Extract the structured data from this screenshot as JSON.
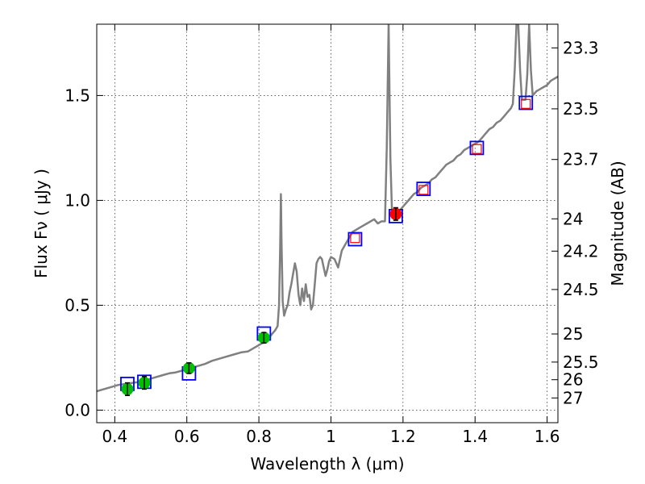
{
  "chart_data": {
    "type": "line",
    "xlabel": "Wavelength  λ (μm)",
    "ylabel": "Flux  Fν  ( μJy )",
    "ylabel_right": "Magnitude (AB)",
    "xlim": [
      0.35,
      1.63
    ],
    "ylim": [
      -0.06,
      1.84
    ],
    "grid": true,
    "x_ticks": [
      {
        "value": 0.4,
        "label": "0.4"
      },
      {
        "value": 0.6,
        "label": "0.6"
      },
      {
        "value": 0.8,
        "label": "0.8"
      },
      {
        "value": 1.0,
        "label": "1"
      },
      {
        "value": 1.2,
        "label": "1.2"
      },
      {
        "value": 1.4,
        "label": "1.4"
      },
      {
        "value": 1.6,
        "label": "1.6"
      }
    ],
    "y_ticks": [
      {
        "value": 0.0,
        "label": "0.0"
      },
      {
        "value": 0.5,
        "label": "0.5"
      },
      {
        "value": 1.0,
        "label": "1.0"
      },
      {
        "value": 1.5,
        "label": "1.5"
      }
    ],
    "right_ticks": [
      {
        "flux": 1.727,
        "label": "23.3"
      },
      {
        "flux": 1.4365,
        "label": "23.5"
      },
      {
        "flux": 1.195,
        "label": "23.7"
      },
      {
        "flux": 0.912,
        "label": "24"
      },
      {
        "flux": 0.758,
        "label": "24.2"
      },
      {
        "flux": 0.575,
        "label": "24.5"
      },
      {
        "flux": 0.363,
        "label": "25"
      },
      {
        "flux": 0.229,
        "label": "25.5"
      },
      {
        "flux": 0.145,
        "label": "26"
      },
      {
        "flux": 0.058,
        "label": "27"
      }
    ],
    "spectrum": {
      "color": "#808080",
      "points": [
        [
          0.35,
          0.09
        ],
        [
          0.37,
          0.1
        ],
        [
          0.39,
          0.11
        ],
        [
          0.41,
          0.12
        ],
        [
          0.43,
          0.125
        ],
        [
          0.45,
          0.13
        ],
        [
          0.47,
          0.135
        ],
        [
          0.49,
          0.145
        ],
        [
          0.51,
          0.155
        ],
        [
          0.53,
          0.165
        ],
        [
          0.55,
          0.175
        ],
        [
          0.57,
          0.18
        ],
        [
          0.59,
          0.19
        ],
        [
          0.61,
          0.2
        ],
        [
          0.63,
          0.21
        ],
        [
          0.65,
          0.22
        ],
        [
          0.67,
          0.235
        ],
        [
          0.69,
          0.245
        ],
        [
          0.71,
          0.255
        ],
        [
          0.73,
          0.265
        ],
        [
          0.75,
          0.275
        ],
        [
          0.77,
          0.28
        ],
        [
          0.79,
          0.3
        ],
        [
          0.81,
          0.32
        ],
        [
          0.825,
          0.34
        ],
        [
          0.835,
          0.36
        ],
        [
          0.845,
          0.38
        ],
        [
          0.852,
          0.4
        ],
        [
          0.856,
          0.5
        ],
        [
          0.859,
          0.78
        ],
        [
          0.861,
          1.03
        ],
        [
          0.863,
          0.8
        ],
        [
          0.866,
          0.52
        ],
        [
          0.87,
          0.45
        ],
        [
          0.875,
          0.48
        ],
        [
          0.88,
          0.5
        ],
        [
          0.885,
          0.56
        ],
        [
          0.89,
          0.6
        ],
        [
          0.895,
          0.65
        ],
        [
          0.9,
          0.7
        ],
        [
          0.905,
          0.66
        ],
        [
          0.91,
          0.55
        ],
        [
          0.915,
          0.5
        ],
        [
          0.92,
          0.58
        ],
        [
          0.925,
          0.52
        ],
        [
          0.93,
          0.6
        ],
        [
          0.935,
          0.54
        ],
        [
          0.94,
          0.55
        ],
        [
          0.945,
          0.48
        ],
        [
          0.95,
          0.5
        ],
        [
          0.955,
          0.6
        ],
        [
          0.96,
          0.7
        ],
        [
          0.965,
          0.72
        ],
        [
          0.97,
          0.73
        ],
        [
          0.975,
          0.72
        ],
        [
          0.98,
          0.68
        ],
        [
          0.985,
          0.64
        ],
        [
          0.99,
          0.67
        ],
        [
          0.995,
          0.71
        ],
        [
          1.0,
          0.73
        ],
        [
          1.01,
          0.72
        ],
        [
          1.02,
          0.68
        ],
        [
          1.03,
          0.76
        ],
        [
          1.04,
          0.79
        ],
        [
          1.05,
          0.82
        ],
        [
          1.06,
          0.85
        ],
        [
          1.07,
          0.86
        ],
        [
          1.08,
          0.87
        ],
        [
          1.09,
          0.88
        ],
        [
          1.1,
          0.89
        ],
        [
          1.11,
          0.9
        ],
        [
          1.12,
          0.91
        ],
        [
          1.13,
          0.89
        ],
        [
          1.14,
          0.9
        ],
        [
          1.15,
          0.9
        ],
        [
          1.155,
          1.25
        ],
        [
          1.16,
          1.84
        ],
        [
          1.165,
          1.2
        ],
        [
          1.17,
          0.92
        ],
        [
          1.18,
          0.93
        ],
        [
          1.19,
          0.95
        ],
        [
          1.2,
          0.97
        ],
        [
          1.21,
          0.99
        ],
        [
          1.22,
          1.01
        ],
        [
          1.23,
          1.03
        ],
        [
          1.24,
          1.04
        ],
        [
          1.25,
          1.06
        ],
        [
          1.26,
          1.07
        ],
        [
          1.27,
          1.08
        ],
        [
          1.28,
          1.1
        ],
        [
          1.29,
          1.11
        ],
        [
          1.3,
          1.13
        ],
        [
          1.31,
          1.15
        ],
        [
          1.32,
          1.17
        ],
        [
          1.33,
          1.18
        ],
        [
          1.34,
          1.19
        ],
        [
          1.35,
          1.21
        ],
        [
          1.36,
          1.22
        ],
        [
          1.37,
          1.24
        ],
        [
          1.38,
          1.25
        ],
        [
          1.39,
          1.26
        ],
        [
          1.4,
          1.27
        ],
        [
          1.41,
          1.28
        ],
        [
          1.42,
          1.3
        ],
        [
          1.43,
          1.32
        ],
        [
          1.44,
          1.34
        ],
        [
          1.45,
          1.35
        ],
        [
          1.46,
          1.37
        ],
        [
          1.47,
          1.38
        ],
        [
          1.48,
          1.4
        ],
        [
          1.49,
          1.42
        ],
        [
          1.5,
          1.44
        ],
        [
          1.505,
          1.46
        ],
        [
          1.51,
          1.62
        ],
        [
          1.515,
          1.84
        ],
        [
          1.52,
          1.84
        ],
        [
          1.525,
          1.62
        ],
        [
          1.53,
          1.48
        ],
        [
          1.54,
          1.48
        ],
        [
          1.545,
          1.6
        ],
        [
          1.55,
          1.84
        ],
        [
          1.555,
          1.62
        ],
        [
          1.56,
          1.5
        ],
        [
          1.57,
          1.52
        ],
        [
          1.58,
          1.53
        ],
        [
          1.59,
          1.54
        ],
        [
          1.6,
          1.55
        ],
        [
          1.61,
          1.57
        ],
        [
          1.62,
          1.58
        ],
        [
          1.63,
          1.59
        ]
      ]
    },
    "model_photometry": {
      "marker": "open-square",
      "color": "#0000ff",
      "points": [
        [
          0.435,
          0.125
        ],
        [
          0.482,
          0.135
        ],
        [
          0.606,
          0.175
        ],
        [
          0.814,
          0.365
        ],
        [
          1.067,
          0.815
        ],
        [
          1.18,
          0.925
        ],
        [
          1.257,
          1.055
        ],
        [
          1.405,
          1.25
        ],
        [
          1.541,
          1.465
        ]
      ]
    },
    "observed_optical": {
      "marker": "filled-circle",
      "color": "#00c000",
      "points": [
        {
          "x": 0.435,
          "y": 0.1,
          "err": 0.03
        },
        {
          "x": 0.482,
          "y": 0.13,
          "err": 0.03
        },
        {
          "x": 0.606,
          "y": 0.2,
          "err": 0.025
        },
        {
          "x": 0.814,
          "y": 0.345,
          "err": 0.025
        }
      ]
    },
    "observed_nir": {
      "marker": "filled-circle",
      "color": "#ff0000",
      "points": [
        {
          "x": 1.18,
          "y": 0.935,
          "err": 0.03
        }
      ]
    },
    "upper_limits": {
      "marker": "open-square",
      "color": "#ff0000",
      "points": [
        [
          1.067,
          0.82
        ],
        [
          1.257,
          1.05
        ],
        [
          1.405,
          1.245
        ],
        [
          1.541,
          1.46
        ]
      ]
    }
  }
}
